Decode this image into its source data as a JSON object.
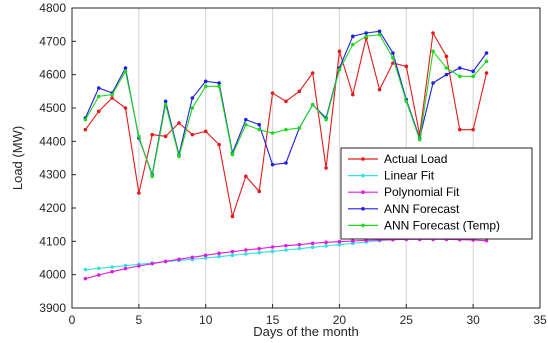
{
  "chart_data": {
    "type": "line",
    "xlabel": "Days of the month",
    "ylabel": "Load (MW)",
    "xlim": [
      0,
      35
    ],
    "ylim": [
      3900,
      4800
    ],
    "xticks": [
      0,
      5,
      10,
      15,
      20,
      25,
      30,
      35
    ],
    "yticks": [
      3900,
      4000,
      4100,
      4200,
      4300,
      4400,
      4500,
      4600,
      4700,
      4800
    ],
    "grid": "vertical",
    "legend_position": "center-right",
    "x": [
      1,
      2,
      3,
      4,
      5,
      6,
      7,
      8,
      9,
      10,
      11,
      12,
      13,
      14,
      15,
      16,
      17,
      18,
      19,
      20,
      21,
      22,
      23,
      24,
      25,
      26,
      27,
      28,
      29,
      30,
      31
    ],
    "series": [
      {
        "name": "Actual Load",
        "color": "#e41a1c",
        "values": [
          4435,
          4490,
          4530,
          4500,
          4245,
          4420,
          4415,
          4455,
          4420,
          4430,
          4390,
          4175,
          4295,
          4250,
          4545,
          4520,
          4550,
          4605,
          4320,
          4670,
          4540,
          4710,
          4555,
          4635,
          4625,
          4420,
          4725,
          4655,
          4435,
          4435,
          4605
        ]
      },
      {
        "name": "Linear Fit",
        "color": "#33e0e0",
        "values": [
          4015,
          4019,
          4023,
          4027,
          4031,
          4035,
          4039,
          4043,
          4046,
          4050,
          4054,
          4058,
          4062,
          4066,
          4070,
          4074,
          4078,
          4082,
          4086,
          4090,
          4094,
          4098,
          4102,
          4105,
          4109,
          4113,
          4117,
          4121,
          4125,
          4128,
          4130
        ]
      },
      {
        "name": "Polynomial Fit",
        "color": "#e01be0",
        "values": [
          3988,
          3999,
          4009,
          4018,
          4026,
          4033,
          4040,
          4046,
          4052,
          4058,
          4064,
          4069,
          4074,
          4078,
          4083,
          4087,
          4090,
          4094,
          4097,
          4099,
          4101,
          4103,
          4104,
          4105,
          4106,
          4106,
          4106,
          4106,
          4105,
          4104,
          4102
        ]
      },
      {
        "name": "ANN Forecast",
        "color": "#1f1fe0",
        "values": [
          4470,
          4560,
          4545,
          4620,
          4410,
          4300,
          4520,
          4360,
          4530,
          4580,
          4575,
          4365,
          4465,
          4450,
          4330,
          4335,
          4440,
          4510,
          4470,
          4620,
          4715,
          4725,
          4730,
          4665,
          4525,
          4410,
          4575,
          4600,
          4620,
          4610,
          4665
        ]
      },
      {
        "name": "ANN Forecast (Temp)",
        "color": "#1fd81f",
        "values": [
          4465,
          4535,
          4540,
          4610,
          4415,
          4295,
          4510,
          4355,
          4500,
          4565,
          4565,
          4360,
          4450,
          4435,
          4425,
          4435,
          4440,
          4510,
          4465,
          4615,
          4690,
          4715,
          4720,
          4650,
          4520,
          4405,
          4670,
          4620,
          4595,
          4595,
          4640
        ]
      }
    ]
  }
}
